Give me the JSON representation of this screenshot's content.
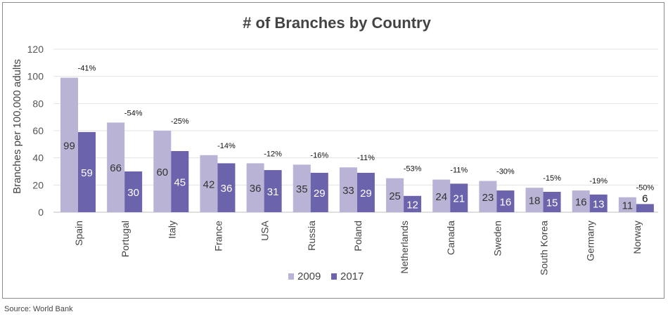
{
  "chart_data": {
    "type": "bar",
    "title": "# of Branches by Country",
    "ylabel": "Branches per 100,000 adults",
    "xlabel": "",
    "ylim": [
      0,
      120
    ],
    "yticks": [
      0,
      20,
      40,
      60,
      80,
      100,
      120
    ],
    "grid": true,
    "legend_position": "bottom-center",
    "categories": [
      "Spain",
      "Portugal",
      "Italy",
      "France",
      "USA",
      "Russia",
      "Poland",
      "Netherlands",
      "Canada",
      "Sweden",
      "South Korea",
      "Germany",
      "Norway"
    ],
    "series": [
      {
        "name": "2009",
        "color": "#b9b3d6",
        "values": [
          99,
          66,
          60,
          42,
          36,
          35,
          33,
          25,
          24,
          23,
          18,
          16,
          11
        ]
      },
      {
        "name": "2017",
        "color": "#6b64ad",
        "values": [
          59,
          30,
          45,
          36,
          31,
          29,
          29,
          12,
          21,
          16,
          15,
          13,
          6
        ]
      }
    ],
    "annotations": [
      "-41%",
      "-54%",
      "-25%",
      "-14%",
      "-12%",
      "-16%",
      "-11%",
      "-53%",
      "-11%",
      "-30%",
      "-15%",
      "-19%",
      "-50%"
    ]
  },
  "source": "Source: World Bank"
}
